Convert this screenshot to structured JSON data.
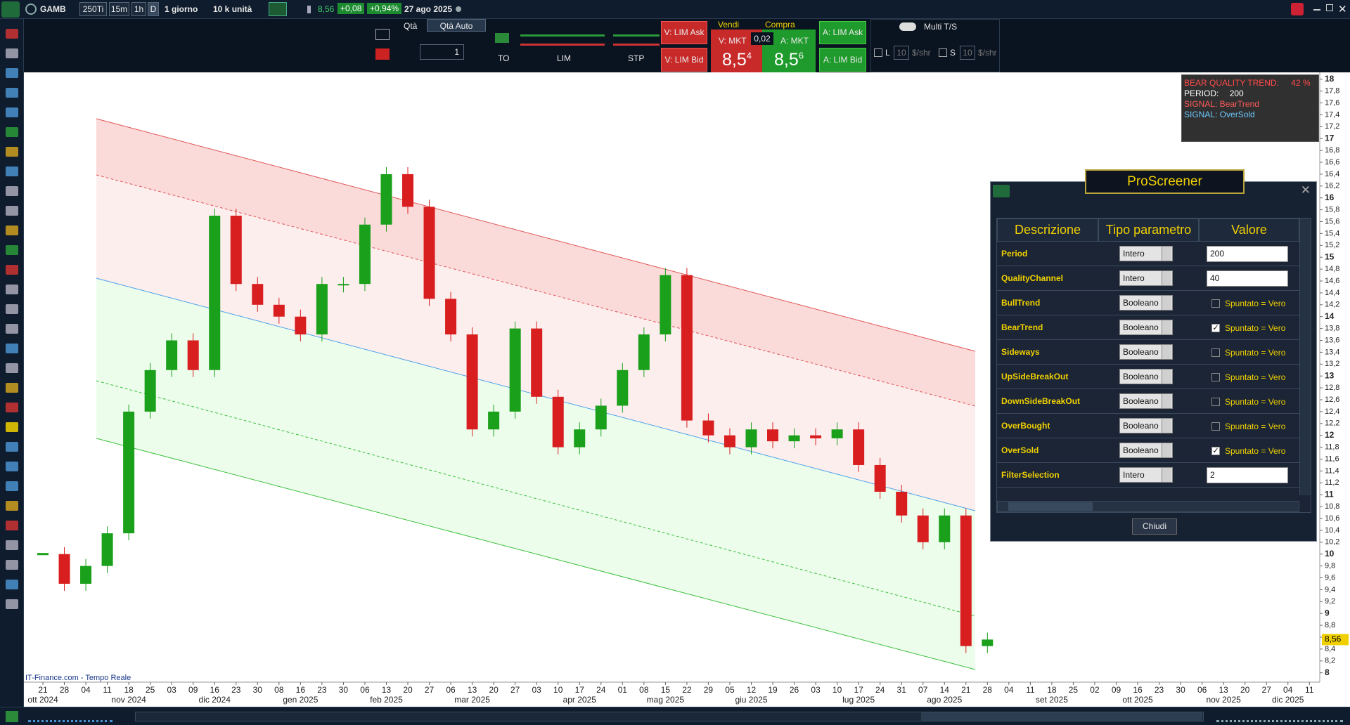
{
  "toolbar": {
    "symbol": "GAMB",
    "buttons": [
      "250Ti",
      "15m",
      "1h",
      "D"
    ],
    "period": "1 giorno",
    "units": "10 k unità",
    "last": "8,56",
    "change": "+0,08",
    "change_pct": "+0,94%",
    "date": "27 ago 2025"
  },
  "order_bar": {
    "qty_label": "Qtà",
    "qty_auto": "Qtà Auto",
    "qty": "1",
    "to": "TO",
    "lim": "LIM",
    "stp": "STP",
    "sell_lim_ask": "V: LIM Ask",
    "sell_lim_bid": "V: LIM Bid",
    "sell": "Vendi",
    "buy": "Compra",
    "sell_mkt": "V: MKT",
    "spread": "0,02",
    "buy_mkt": "A: MKT",
    "bid_main": "8,5",
    "bid_tail": "4",
    "ask_main": "8,5",
    "ask_tail": "6",
    "buy_lim_ask": "A: LIM Ask",
    "buy_lim_bid": "A: LIM Bid",
    "multi": "Multi T/S",
    "l": "L",
    "l_qty": "10",
    "l_unit": "$/shr",
    "s": "S",
    "s_qty": "10",
    "s_unit": "$/shr"
  },
  "indicator": {
    "trend_label": "BEAR QUALITY TREND:",
    "trend_value": "42 %",
    "period_label": "PERIOD:",
    "period_value": "200",
    "signal1": "SIGNAL: BearTrend",
    "signal2": "SIGNAL: OverSold"
  },
  "chart_data": {
    "type": "candlestick",
    "source": "IT-Finance.com - Tempo Reale",
    "last_label": "8,56",
    "categories": [
      "21",
      "28",
      "04",
      "11",
      "18",
      "25",
      "03",
      "09",
      "16",
      "23",
      "30",
      "08",
      "16",
      "23",
      "30",
      "06",
      "13",
      "20",
      "27",
      "06",
      "13",
      "20",
      "27",
      "03",
      "10",
      "17",
      "24",
      "01",
      "08",
      "15",
      "22",
      "29",
      "05",
      "12",
      "19",
      "26",
      "03",
      "10",
      "17",
      "24",
      "31",
      "07",
      "14",
      "21",
      "28",
      "04",
      "11",
      "18",
      "25",
      "02",
      "09",
      "16",
      "23",
      "30",
      "06",
      "13",
      "20",
      "27",
      "04",
      "11"
    ],
    "months": [
      "ott 2024",
      null,
      null,
      null,
      "nov 2024",
      null,
      null,
      null,
      "dic 2024",
      null,
      null,
      null,
      "gen 2025",
      null,
      null,
      null,
      "feb 2025",
      null,
      null,
      null,
      "mar 2025",
      null,
      null,
      null,
      null,
      "apr 2025",
      null,
      null,
      null,
      "mag 2025",
      null,
      null,
      null,
      "giu 2025",
      null,
      null,
      null,
      null,
      "lug 2025",
      null,
      null,
      null,
      "ago 2025",
      null,
      null,
      null,
      null,
      "set 2025",
      null,
      null,
      null,
      "ott 2025",
      null,
      null,
      null,
      "nov 2025",
      null,
      null,
      "dic 2025",
      null
    ],
    "closes": [
      10.0,
      9.5,
      9.8,
      10.35,
      12.4,
      13.1,
      13.6,
      13.1,
      15.7,
      14.55,
      14.2,
      14.0,
      13.7,
      14.55,
      14.55,
      15.55,
      16.4,
      15.85,
      14.3,
      13.7,
      12.1,
      12.4,
      13.8,
      12.65,
      11.8,
      12.1,
      12.5,
      13.1,
      13.7,
      14.7,
      12.25,
      12.0,
      11.8,
      12.1,
      11.9,
      12.0,
      11.95,
      12.1,
      11.5,
      11.05,
      10.65,
      10.2,
      10.65,
      8.45,
      8.56,
      null,
      null,
      null,
      null,
      null,
      null,
      null,
      null,
      null,
      null,
      null,
      null,
      null,
      null,
      null
    ],
    "ylim": [
      8,
      18
    ],
    "yticks": [
      8,
      {
        "value": 8.2,
        "label": "8,2"
      },
      {
        "value": 8.4,
        "label": "8,4"
      },
      {
        "value": 8.6,
        "label": "8,6"
      },
      {
        "value": 8.8,
        "label": "8,8"
      },
      9,
      {
        "value": 9.2,
        "label": "9,2"
      },
      {
        "value": 9.4,
        "label": "9,4"
      },
      {
        "value": 9.6,
        "label": "9,6"
      },
      {
        "value": 9.8,
        "label": "9,8"
      },
      10,
      {
        "value": 10.2,
        "label": "10,2"
      },
      {
        "value": 10.4,
        "label": "10,4"
      },
      {
        "value": 10.6,
        "label": "10,6"
      },
      {
        "value": 10.8,
        "label": "10,8"
      },
      11,
      {
        "value": 11.2,
        "label": "11,2"
      },
      {
        "value": 11.4,
        "label": "11,4"
      },
      {
        "value": 11.6,
        "label": "11,6"
      },
      {
        "value": 11.8,
        "label": "11,8"
      },
      12,
      {
        "value": 12.2,
        "label": "12,2"
      },
      {
        "value": 12.4,
        "label": "12,4"
      },
      {
        "value": 12.6,
        "label": "12,6"
      },
      {
        "value": 12.8,
        "label": "12,8"
      },
      13,
      {
        "value": 13.2,
        "label": "13,2"
      },
      {
        "value": 13.4,
        "label": "13,4"
      },
      {
        "value": 13.6,
        "label": "13,6"
      },
      {
        "value": 13.8,
        "label": "13,8"
      },
      14,
      {
        "value": 14.2,
        "label": "14,2"
      },
      {
        "value": 14.4,
        "label": "14,4"
      },
      {
        "value": 14.6,
        "label": "14,6"
      },
      {
        "value": 14.8,
        "label": "14,8"
      },
      15,
      {
        "value": 15.2,
        "label": "15,2"
      },
      {
        "value": 15.4,
        "label": "15,4"
      },
      {
        "value": 15.6,
        "label": "15,6"
      },
      {
        "value": 15.8,
        "label": "15,8"
      },
      16,
      {
        "value": 16.2,
        "label": "16,2"
      },
      {
        "value": 16.4,
        "label": "16,4"
      },
      {
        "value": 16.6,
        "label": "16,6"
      },
      {
        "value": 16.8,
        "label": "16,8"
      },
      17,
      {
        "value": 17.2,
        "label": "17,2"
      },
      {
        "value": 17.4,
        "label": "17,4"
      },
      {
        "value": 17.6,
        "label": "17,6"
      },
      {
        "value": 17.8,
        "label": "17,8"
      },
      18
    ],
    "up_color": "#1aa01a",
    "down_color": "#d81e1e"
  },
  "screener": {
    "title": "ProScreener",
    "columns": [
      "Descrizione",
      "Tipo parametro",
      "Valore"
    ],
    "rows": [
      {
        "name": "Period",
        "type": "Intero",
        "value": "200"
      },
      {
        "name": "QualityChannel",
        "type": "Intero",
        "value": "40"
      },
      {
        "name": "BullTrend",
        "type": "Booleano",
        "value": "Spuntato = Vero",
        "checked": false
      },
      {
        "name": "BearTrend",
        "type": "Booleano",
        "value": "Spuntato = Vero",
        "checked": true
      },
      {
        "name": "Sideways",
        "type": "Booleano",
        "value": "Spuntato = Vero",
        "checked": false
      },
      {
        "name": "UpSideBreakOut",
        "type": "Booleano",
        "value": "Spuntato = Vero",
        "checked": false
      },
      {
        "name": "DownSideBreakOut",
        "type": "Booleano",
        "value": "Spuntato = Vero",
        "checked": false
      },
      {
        "name": "OverBought",
        "type": "Booleano",
        "value": "Spuntato = Vero",
        "checked": false
      },
      {
        "name": "OverSold",
        "type": "Booleano",
        "value": "Spuntato = Vero",
        "checked": true
      },
      {
        "name": "FilterSelection",
        "type": "Intero",
        "value": "2"
      }
    ],
    "close_button": "Chiudi"
  }
}
